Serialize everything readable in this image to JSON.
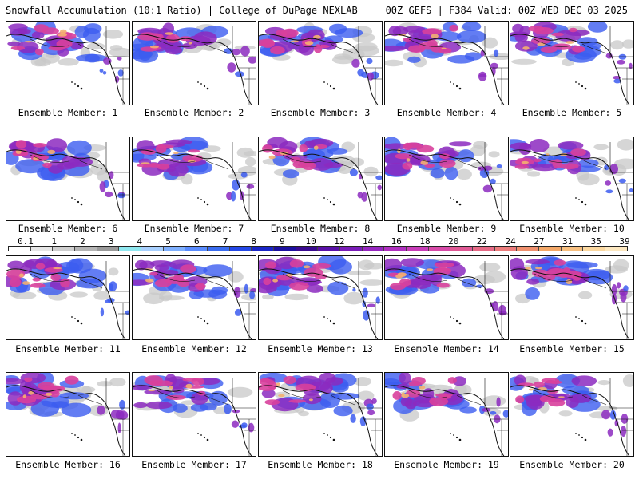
{
  "header": {
    "title_left": "Snowfall Accumulation (10:1 Ratio) | College of DuPage NEXLAB",
    "title_right": "00Z GEFS | F384 Valid: 00Z WED DEC 03 2025"
  },
  "panels": [
    {
      "label": "Ensemble Member: 1"
    },
    {
      "label": "Ensemble Member: 2"
    },
    {
      "label": "Ensemble Member: 3"
    },
    {
      "label": "Ensemble Member: 4"
    },
    {
      "label": "Ensemble Member: 5"
    },
    {
      "label": "Ensemble Member: 6"
    },
    {
      "label": "Ensemble Member: 7"
    },
    {
      "label": "Ensemble Member: 8"
    },
    {
      "label": "Ensemble Member: 9"
    },
    {
      "label": "Ensemble Member: 10"
    },
    {
      "label": "Ensemble Member: 11"
    },
    {
      "label": "Ensemble Member: 12"
    },
    {
      "label": "Ensemble Member: 13"
    },
    {
      "label": "Ensemble Member: 14"
    },
    {
      "label": "Ensemble Member: 15"
    },
    {
      "label": "Ensemble Member: 16"
    },
    {
      "label": "Ensemble Member: 17"
    },
    {
      "label": "Ensemble Member: 18"
    },
    {
      "label": "Ensemble Member: 19"
    },
    {
      "label": "Ensemble Member: 20"
    }
  ],
  "color_scale": {
    "labels": [
      "0.1",
      "1",
      "2",
      "3",
      "4",
      "5",
      "6",
      "7",
      "8",
      "9",
      "10",
      "12",
      "14",
      "16",
      "18",
      "20",
      "22",
      "24",
      "27",
      "31",
      "35",
      "39"
    ],
    "colors": [
      "#ffffff",
      "#e6e6e6",
      "#cfcfcf",
      "#b5b5b5",
      "#9a9a9a",
      "#8fe8f0",
      "#a8d0ff",
      "#7fb0ff",
      "#5a8cff",
      "#3a6cf0",
      "#2448e8",
      "#1a26c8",
      "#1c10a0",
      "#3a0a90",
      "#5a10a8",
      "#7a1cb8",
      "#9626c0",
      "#b030c0",
      "#c83cb8",
      "#d84aa8",
      "#e05894",
      "#e66a86",
      "#ec7c7c",
      "#f0906e",
      "#f4a868",
      "#f8c080",
      "#fbd8a0",
      "#fde8c0"
    ]
  },
  "colors": {
    "snow_light": "#c8c8c8",
    "snow_blue": "#3c5cf0",
    "snow_purple": "#8c2ac0",
    "snow_magenta": "#d8409c",
    "snow_orange": "#f4b070",
    "borders": "#111111"
  }
}
